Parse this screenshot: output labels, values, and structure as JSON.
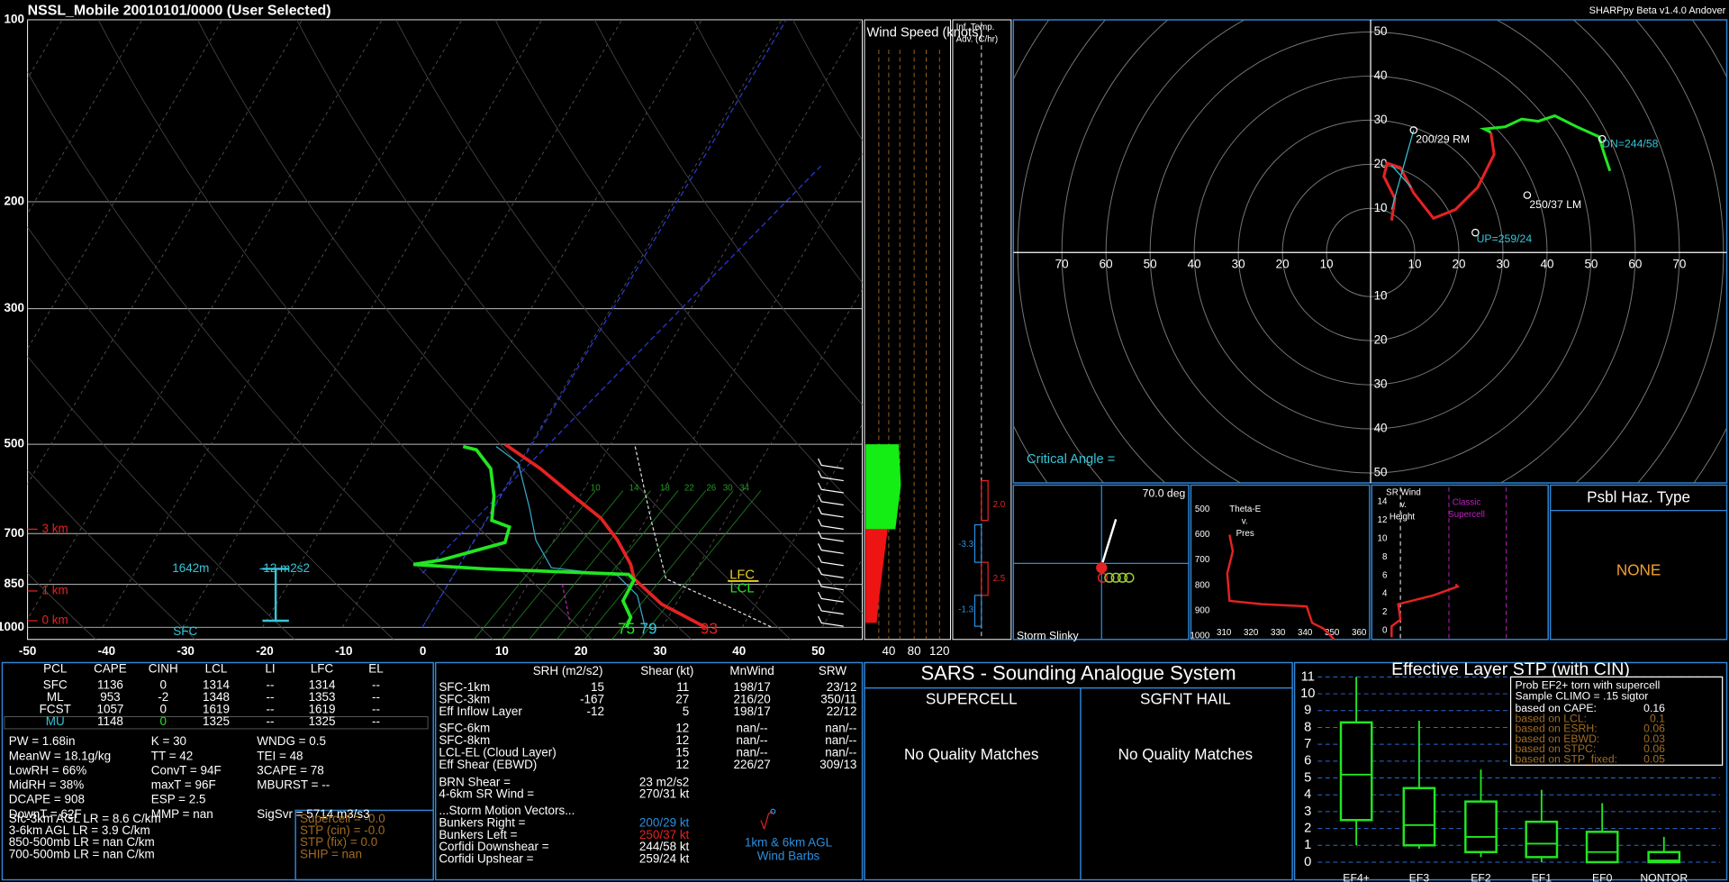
{
  "header": {
    "title": "NSSL_Mobile   20010101/0000  (User Selected)",
    "version": "SHARPpy Beta v1.4.0 Andover"
  },
  "skewt": {
    "pressures": [
      100,
      200,
      300,
      500,
      700,
      850,
      1000
    ],
    "temps": [
      -50,
      -40,
      -30,
      -20,
      -10,
      0,
      10,
      20,
      30,
      40,
      50
    ],
    "heights": [
      "3 km",
      "1 km",
      "0 km"
    ],
    "lcl_height": "1642m",
    "srh": "-12 m2s2",
    "sfc": "SFC",
    "surface_values": [
      "75",
      "79",
      "93"
    ],
    "levels": [
      "LFC",
      "LCL"
    ],
    "dgz": [
      "10",
      "14",
      "18",
      "22",
      "26",
      "30",
      "34"
    ]
  },
  "wind_speed": {
    "title": "Wind Speed (knots)",
    "ticks": [
      40,
      80,
      120
    ]
  },
  "temp_adv": {
    "title": [
      "Inf. Temp.",
      "Adv. (C/hr)"
    ],
    "labels": [
      "2.0",
      "2.5",
      "-3.3",
      "-1.3"
    ]
  },
  "hodograph": {
    "ticks": [
      10,
      20,
      30,
      40,
      50,
      60,
      70
    ],
    "labels": [
      "200/29 RM",
      "250/37 LM",
      "DN=244/58",
      "UP=259/24"
    ],
    "critical_angle": "Critical Angle ="
  },
  "slinky": {
    "angle": "70.0 deg",
    "title": "Storm Slinky"
  },
  "theta_e": {
    "title": [
      "Theta-E",
      "v.",
      "Pres"
    ],
    "pressures": [
      500,
      600,
      700,
      800,
      900,
      1000
    ],
    "temps": [
      310,
      320,
      330,
      340,
      350,
      360
    ]
  },
  "sr_wind": {
    "title": [
      "SR Wind",
      "v.",
      "Height"
    ],
    "note": [
      "Classic",
      "Supercell"
    ],
    "heights": [
      0,
      2,
      4,
      6,
      8,
      10,
      12,
      14
    ]
  },
  "hazard": {
    "title": "Psbl Haz. Type",
    "value": "NONE"
  },
  "thermo": {
    "headers": [
      "PCL",
      "CAPE",
      "CINH",
      "LCL",
      "LI",
      "LFC",
      "EL"
    ],
    "rows": [
      [
        "SFC",
        1136,
        0,
        1314,
        "--",
        1314,
        "--"
      ],
      [
        "ML",
        953,
        -2,
        1348,
        "--",
        1353,
        "--"
      ],
      [
        "FCST",
        1057,
        0,
        1619,
        "--",
        1619,
        "--"
      ],
      [
        "MU",
        1148,
        0,
        1325,
        "--",
        1325,
        "--"
      ]
    ],
    "indices": [
      [
        "PW = 1.68in",
        "K = 30",
        "WNDG = 0.5"
      ],
      [
        "MeanW = 18.1g/kg",
        "TT = 42",
        "TEI = 48"
      ],
      [
        "LowRH = 66%",
        "ConvT = 94F",
        "3CAPE = 78"
      ],
      [
        "MidRH = 38%",
        "maxT = 96F",
        "MBURST = --"
      ],
      [
        "DCAPE = 908",
        "ESP = 2.5"
      ],
      [
        "DownT = 62F",
        "MMP = nan",
        "SigSvr = 5714 m3/s3"
      ]
    ],
    "lapse": [
      "Sfc-3km AGL LR = 8.6 C/km",
      "3-6km AGL LR = 3.9 C/km",
      "850-500mb LR = nan C/km",
      "700-500mb LR = nan C/km"
    ],
    "composites": [
      "Supercell = -0.0",
      "STP (cin) = -0.0",
      "STP (fix) = 0.0",
      "SHIP = nan"
    ]
  },
  "kinematic": {
    "headers": [
      "SRH (m2/s2)",
      "Shear (kt)",
      "MnWind",
      "SRW"
    ],
    "rows": [
      [
        "SFC-1km",
        15,
        11,
        "198/17",
        "23/12"
      ],
      [
        "SFC-3km",
        -167,
        27,
        "216/20",
        "350/11"
      ],
      [
        "Eff Inflow Layer",
        -12,
        5,
        "198/17",
        "22/12"
      ],
      [
        "SFC-6km",
        null,
        12,
        "nan/--",
        "nan/--"
      ],
      [
        "SFC-8km",
        null,
        12,
        "nan/--",
        "nan/--"
      ],
      [
        "LCL-EL (Cloud Layer)",
        null,
        15,
        "nan/--",
        "nan/--"
      ],
      [
        "Eff Shear (EBWD)",
        null,
        12,
        "226/27",
        "309/13"
      ]
    ],
    "brn": [
      [
        "BRN Shear =",
        "23 m2/s2"
      ],
      [
        "4-6km SR Wind =",
        "270/31 kt"
      ]
    ],
    "motion_title": "...Storm Motion Vectors...",
    "motion": [
      [
        "Bunkers Right =",
        "200/29 kt"
      ],
      [
        "Bunkers Left =",
        "250/37 kt"
      ],
      [
        "Corfidi Downshear =",
        "244/58 kt"
      ],
      [
        "Corfidi Upshear =",
        "259/24 kt"
      ]
    ],
    "barbs_label": [
      "1km & 6km AGL",
      "Wind Barbs"
    ]
  },
  "sars": {
    "title": "SARS - Sounding Analogue System",
    "columns": [
      {
        "title": "SUPERCELL",
        "result": "No Quality Matches"
      },
      {
        "title": "SGFNT HAIL",
        "result": "No Quality Matches"
      }
    ]
  },
  "stp": {
    "title": "Effective Layer STP (with CIN)",
    "ylim": [
      0,
      11
    ],
    "yticks": [
      0,
      1,
      2,
      3,
      4,
      5,
      6,
      7,
      8,
      9,
      10,
      11
    ],
    "categories": [
      "EF4+",
      "EF3",
      "EF2",
      "EF1",
      "EF0",
      "NONTOR"
    ],
    "boxes": [
      [
        1,
        2.5,
        5.2,
        8.3,
        11
      ],
      [
        0.8,
        1,
        2.2,
        4.4,
        8.4
      ],
      [
        0.3,
        0.6,
        1.5,
        3.6,
        5.5
      ],
      [
        0,
        0.3,
        1.1,
        2.4,
        4.3
      ],
      [
        0,
        0,
        0.6,
        1.8,
        3.5
      ],
      [
        0,
        0,
        0.1,
        0.6,
        1.5
      ]
    ],
    "prob": {
      "title": "Prob EF2+ torn with supercell",
      "climo": "Sample CLIMO = .15 sigtor",
      "rows": [
        [
          "based on CAPE:",
          "0.16"
        ],
        [
          "based on LCL:",
          "0.1"
        ],
        [
          "based on ESRH:",
          "0.06"
        ],
        [
          "based on EBWD:",
          "0.03"
        ],
        [
          "based on STPC:",
          "0.06"
        ],
        [
          "based on STP_fixed:",
          "0.05"
        ]
      ]
    }
  }
}
